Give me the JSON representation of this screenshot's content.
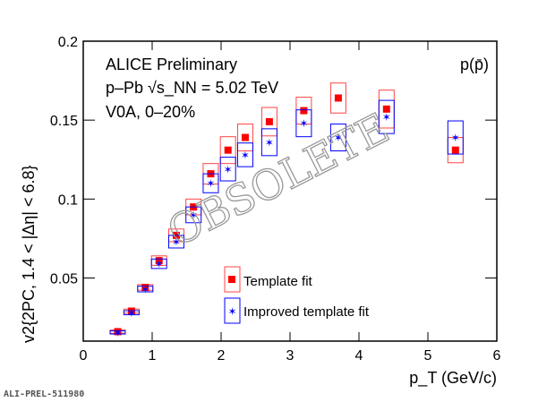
{
  "chart_data": {
    "type": "scatter",
    "xlabel": "p_T (GeV/c)",
    "ylabel": "v2{2PC, 1.4 < |Δη| < 6.8}",
    "xlim": [
      0,
      6
    ],
    "ylim": [
      0.01,
      0.2
    ],
    "xticks": [
      "0",
      "1",
      "2",
      "3",
      "4",
      "5",
      "6"
    ],
    "yticks": [
      "0.05",
      "0.1",
      "0.15",
      "0.2"
    ],
    "annotations": [
      "ALICE Preliminary",
      "p–Pb √s_NN = 5.02 TeV",
      "V0A, 0–20%",
      "p(p̄)"
    ],
    "watermark": "OBSOLETE",
    "legend_position": "bottom-center",
    "x": [
      0.5,
      0.7,
      0.9,
      1.1,
      1.35,
      1.6,
      1.85,
      2.1,
      2.35,
      2.7,
      3.2,
      3.7,
      4.4,
      5.4
    ],
    "series": [
      {
        "name": "Template fit",
        "color": "#ff0000",
        "marker": "square",
        "values": [
          0.016,
          0.029,
          0.044,
          0.061,
          0.077,
          0.095,
          0.116,
          0.131,
          0.139,
          0.149,
          0.156,
          0.164,
          0.157,
          0.131
        ],
        "syst": [
          0.001,
          0.0013,
          0.0018,
          0.003,
          0.004,
          0.005,
          0.0065,
          0.0085,
          0.0085,
          0.009,
          0.0085,
          0.0095,
          0.012,
          0.008
        ]
      },
      {
        "name": "Improved template fit",
        "color": "#0000ff",
        "marker": "star",
        "values": [
          0.0155,
          0.028,
          0.043,
          0.059,
          0.073,
          0.09,
          0.11,
          0.119,
          0.128,
          0.136,
          0.148,
          0.139,
          0.152,
          0.139
        ],
        "syst": [
          0.001,
          0.0013,
          0.0018,
          0.003,
          0.004,
          0.005,
          0.006,
          0.0075,
          0.0075,
          0.0085,
          0.0085,
          0.0085,
          0.0105,
          0.0105
        ]
      }
    ]
  },
  "footer": {
    "label": "ALI-PREL-511980"
  }
}
